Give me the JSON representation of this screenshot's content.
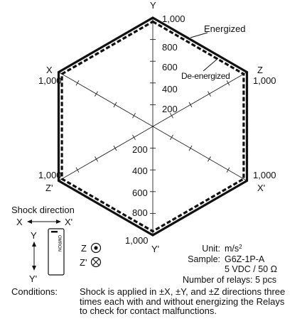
{
  "chart_data": {
    "type": "radar",
    "axes": [
      {
        "name": "Y",
        "end_label": "1,000"
      },
      {
        "name": "Z",
        "end_label": "1,000"
      },
      {
        "name": "X'",
        "end_label": "1,000"
      },
      {
        "name": "Y'",
        "end_label": "1,000"
      },
      {
        "name": "Z'",
        "end_label": "1,000"
      },
      {
        "name": "X",
        "end_label": "1,000"
      }
    ],
    "rmax": 1000,
    "tick_step": 200,
    "y_tick_labels": [
      "200",
      "400",
      "600",
      "800",
      "1,000"
    ],
    "series": [
      {
        "name": "Energized",
        "values": [
          1000,
          1000,
          1000,
          1000,
          1000,
          1000
        ],
        "style": "solid"
      },
      {
        "name": "De-energized",
        "values": [
          1000,
          1000,
          1000,
          1000,
          1000,
          1000
        ],
        "style": "dashed"
      }
    ]
  },
  "shock_direction": {
    "title": "Shock direction",
    "x": "X",
    "x_prime": "X'",
    "y": "Y",
    "y_prime": "Y'",
    "z": "Z",
    "z_prime": "Z'",
    "relay_brand": "OMRON"
  },
  "info": {
    "unit_label": "Unit:",
    "unit_value": "m/s",
    "unit_sup": "2",
    "sample_label": "Sample:",
    "sample_value": "G6Z-1P-A",
    "sample_rating": "5 VDC / 50 Ω",
    "relays": "Number of relays: 5 pcs"
  },
  "conditions": {
    "label": "Conditions:",
    "text": "Shock is applied in ±X, ±Y, and ±Z directions three times each with and without energizing the Relays to check for contact malfunctions."
  },
  "colors": {
    "line": "#111111",
    "axis": "#222222"
  }
}
